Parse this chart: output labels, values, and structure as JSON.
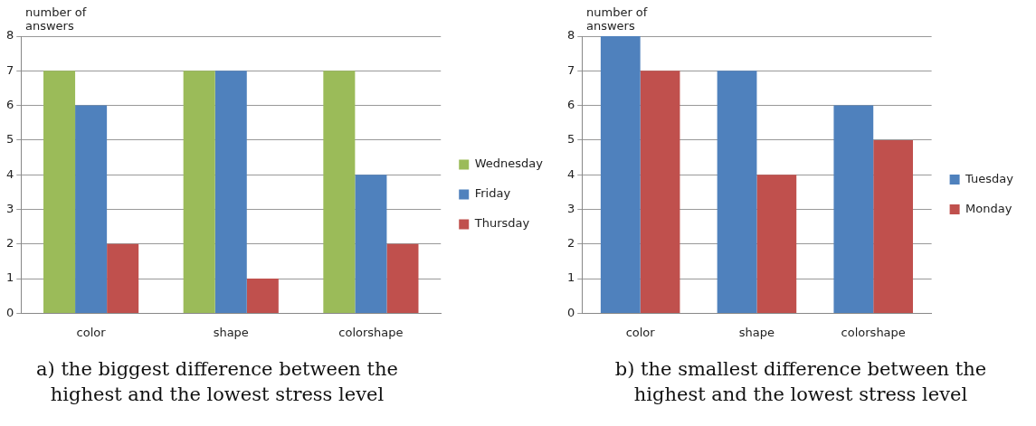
{
  "chart_data": [
    {
      "type": "bar",
      "title": "a) the biggest difference between the highest and the lowest stress level",
      "ylabel": "number of answers",
      "categories": [
        "color",
        "shape",
        "colorshape"
      ],
      "series": [
        {
          "name": "Wednesday",
          "color": "#9bbb59",
          "values": [
            7,
            7,
            7
          ]
        },
        {
          "name": "Friday",
          "color": "#4f81bd",
          "values": [
            6,
            7,
            4
          ]
        },
        {
          "name": "Thursday",
          "color": "#c0504d",
          "values": [
            2,
            1,
            2
          ]
        }
      ],
      "ylim": [
        0,
        8
      ],
      "yticks": [
        0,
        1,
        2,
        3,
        4,
        5,
        6,
        7,
        8
      ],
      "grid": "y",
      "legend": "right"
    },
    {
      "type": "bar",
      "title": "b) the smallest difference between the highest and the lowest stress level",
      "ylabel": "number of answers",
      "categories": [
        "color",
        "shape",
        "colorshape"
      ],
      "series": [
        {
          "name": "Tuesday",
          "color": "#4f81bd",
          "values": [
            8,
            7,
            6
          ]
        },
        {
          "name": "Monday",
          "color": "#c0504d",
          "values": [
            7,
            4,
            5
          ]
        }
      ],
      "ylim": [
        0,
        8
      ],
      "yticks": [
        0,
        1,
        2,
        3,
        4,
        5,
        6,
        7,
        8
      ],
      "grid": "y",
      "legend": "right"
    }
  ]
}
